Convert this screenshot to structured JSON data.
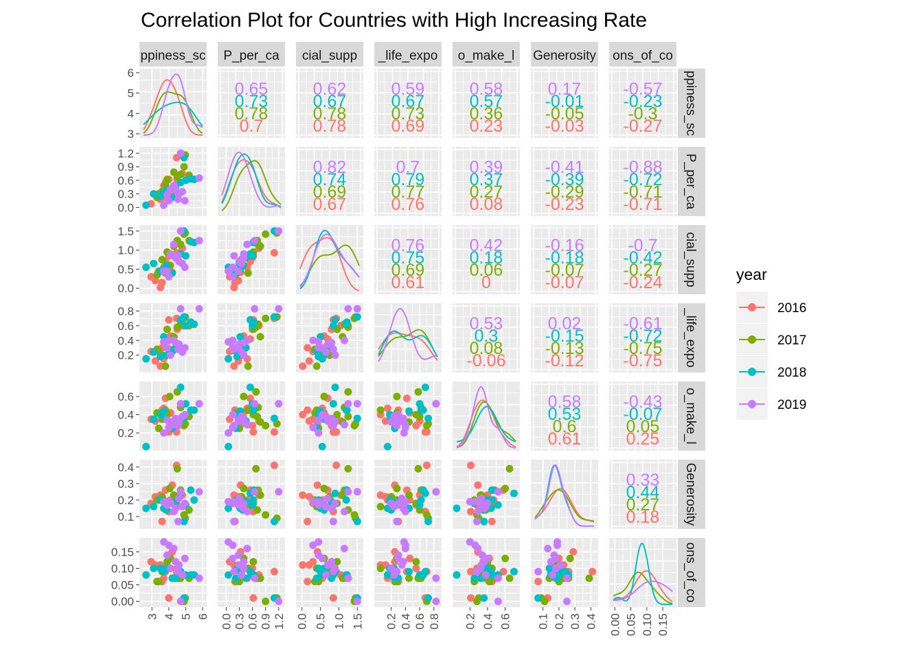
{
  "chart_data": {
    "type": "scatter",
    "title": "Correlation Plot for Countries with High Increasing Rate",
    "variables": [
      {
        "strip": "ppiness_sc",
        "strip_row": "ppiness_sc",
        "range": [
          2.5,
          6.0
        ],
        "ticks": [
          3,
          4,
          5,
          6
        ],
        "tick_labels": [
          "3",
          "4",
          "5",
          "6"
        ],
        "ytick_labels": [
          "3",
          "4",
          "5",
          "6"
        ]
      },
      {
        "strip": "P_per_ca",
        "strip_row": "P_per_ca",
        "range": [
          -0.1,
          1.25
        ],
        "ticks": [
          0.0,
          0.3,
          0.6,
          0.9,
          1.2
        ],
        "tick_labels": [
          "0.0",
          "0.3",
          "0.6",
          "0.9",
          "1.2"
        ],
        "ytick_labels": [
          "0.0",
          "0.3",
          "0.6",
          "0.9",
          "1.2"
        ]
      },
      {
        "strip": "cial_supp",
        "strip_row": "cial_supp",
        "range": [
          -0.05,
          1.55
        ],
        "ticks": [
          0.0,
          0.5,
          1.0,
          1.5
        ],
        "tick_labels": [
          "0.0",
          "0.5",
          "1.0",
          "1.5"
        ],
        "ytick_labels": [
          "0.0",
          "0.5",
          "1.0",
          "1.5"
        ]
      },
      {
        "strip": "_life_expo",
        "strip_row": "_life_expo",
        "range": [
          0.02,
          0.85
        ],
        "ticks": [
          0.2,
          0.4,
          0.6,
          0.8
        ],
        "tick_labels": [
          "0.2",
          "0.4",
          "0.6",
          "0.8"
        ],
        "ytick_labels": [
          "0.2",
          "0.4",
          "0.6",
          "0.8"
        ]
      },
      {
        "strip": "o_make_l",
        "strip_row": "o_make_l",
        "range": [
          0.05,
          0.72
        ],
        "ticks": [
          0.2,
          0.4,
          0.6
        ],
        "tick_labels": [
          "0.2",
          "0.4",
          "0.6"
        ],
        "ytick_labels": [
          "0.2",
          "0.4",
          "0.6"
        ]
      },
      {
        "strip": "Generosity",
        "strip_row": "Generosity",
        "range": [
          0.05,
          0.42
        ],
        "ticks": [
          0.1,
          0.2,
          0.3,
          0.4
        ],
        "tick_labels": [
          "0.1",
          "0.2",
          "0.3",
          "0.4"
        ],
        "ytick_labels": [
          "0.1",
          "0.2",
          "0.3",
          "0.4"
        ]
      },
      {
        "strip": "ons_of_co",
        "strip_row": "ons_of_co",
        "range": [
          -0.005,
          0.18
        ],
        "ticks": [
          0.0,
          0.05,
          0.1,
          0.15
        ],
        "tick_labels": [
          "0.00",
          "0.05",
          "0.10",
          "0.15"
        ],
        "ytick_labels": [
          "0.00",
          "0.05",
          "0.10",
          "0.15"
        ]
      }
    ],
    "legend": {
      "title": "year",
      "position": "right",
      "entries": [
        {
          "label": "2016",
          "color": "#F8766D"
        },
        {
          "label": "2017",
          "color": "#7CAE00"
        },
        {
          "label": "2018",
          "color": "#00BFC4"
        },
        {
          "label": "2019",
          "color": "#C77CFF"
        }
      ]
    },
    "correlations": [
      {
        "row": 0,
        "col": 1,
        "values": [
          "0.65",
          "0.73",
          "0.78",
          "0.7"
        ]
      },
      {
        "row": 0,
        "col": 2,
        "values": [
          "0.62",
          "0.67",
          "0.78",
          "0.78"
        ]
      },
      {
        "row": 0,
        "col": 3,
        "values": [
          "0.59",
          "0.67",
          "0.73",
          "0.69"
        ]
      },
      {
        "row": 0,
        "col": 4,
        "values": [
          "0.58",
          "0.57",
          "0.36",
          "0.23"
        ]
      },
      {
        "row": 0,
        "col": 5,
        "values": [
          "0.17",
          "-0.01",
          "-0.05",
          "-0.03"
        ]
      },
      {
        "row": 0,
        "col": 6,
        "values": [
          "-0.57",
          "-0.23",
          "-0.3",
          "-0.27"
        ]
      },
      {
        "row": 1,
        "col": 2,
        "values": [
          "0.82",
          "0.74",
          "0.69",
          "0.67"
        ]
      },
      {
        "row": 1,
        "col": 3,
        "values": [
          "0.7",
          "0.79",
          "0.77",
          "0.76"
        ]
      },
      {
        "row": 1,
        "col": 4,
        "values": [
          "0.39",
          "0.37",
          "0.27",
          "0.08"
        ]
      },
      {
        "row": 1,
        "col": 5,
        "values": [
          "-0.41",
          "-0.39",
          "-0.29",
          "-0.23"
        ]
      },
      {
        "row": 1,
        "col": 6,
        "values": [
          "-0.88",
          "-0.72",
          "-0.71",
          "-0.71"
        ]
      },
      {
        "row": 2,
        "col": 3,
        "values": [
          "0.76",
          "0.75",
          "0.69",
          "0.61"
        ]
      },
      {
        "row": 2,
        "col": 4,
        "values": [
          "0.42",
          "0.18",
          "0.06",
          "0"
        ]
      },
      {
        "row": 2,
        "col": 5,
        "values": [
          "-0.16",
          "-0.18",
          "-0.07",
          "-0.07"
        ]
      },
      {
        "row": 2,
        "col": 6,
        "values": [
          "-0.7",
          "-0.42",
          "-0.27",
          "-0.24"
        ]
      },
      {
        "row": 3,
        "col": 4,
        "values": [
          "0.53",
          "0.3",
          "0.08",
          "-0.06"
        ]
      },
      {
        "row": 3,
        "col": 5,
        "values": [
          "0.02",
          "-0.15",
          "-0.13",
          "-0.12"
        ]
      },
      {
        "row": 3,
        "col": 6,
        "values": [
          "-0.61",
          "-0.72",
          "-0.75",
          "-0.75"
        ]
      },
      {
        "row": 4,
        "col": 5,
        "values": [
          "0.58",
          "0.53",
          "0.6",
          "0.61"
        ]
      },
      {
        "row": 4,
        "col": 6,
        "values": [
          "-0.43",
          "-0.07",
          "0.05",
          "0.25"
        ]
      },
      {
        "row": 5,
        "col": 6,
        "values": [
          "0.33",
          "0.44",
          "0.27",
          "0.18"
        ]
      }
    ],
    "series": [
      {
        "name": "2016",
        "points": [
          [
            4.46,
            1.1,
            0.93,
            0.7,
            0.21,
            0.41,
            0.09
          ],
          [
            3.8,
            0.55,
            0.7,
            0.42,
            0.58,
            0.26,
            0.09
          ],
          [
            3.2,
            0.28,
            0.2,
            0.12,
            0.33,
            0.22,
            0.11
          ],
          [
            3.5,
            0.18,
            0.02,
            0.05,
            0.4,
            0.23,
            0.11
          ],
          [
            2.95,
            0.08,
            0.3,
            0.25,
            0.35,
            0.18,
            0.12
          ],
          [
            4.1,
            0.4,
            0.6,
            0.46,
            0.42,
            0.2,
            0.13
          ],
          [
            4.2,
            0.33,
            0.42,
            0.25,
            0.29,
            0.29,
            0.15
          ],
          [
            4.5,
            0.6,
            0.8,
            0.55,
            0.28,
            0.17,
            0.1
          ],
          [
            3.6,
            0.2,
            0.15,
            0.3,
            0.45,
            0.07,
            0.06
          ],
          [
            3.7,
            0.48,
            0.55,
            0.15,
            0.47,
            0.2,
            0.07
          ],
          [
            4.0,
            0.62,
            0.85,
            0.68,
            0.21,
            0.13,
            0.01
          ],
          [
            4.8,
            0.75,
            1.05,
            0.6,
            0.33,
            0.23,
            0.08
          ]
        ]
      },
      {
        "name": "2017",
        "points": [
          [
            4.97,
            1.16,
            1.45,
            0.72,
            0.3,
            0.09,
            0.01
          ],
          [
            4.5,
            0.68,
            1.25,
            0.58,
            0.65,
            0.39,
            0.07
          ],
          [
            3.9,
            0.62,
            0.95,
            0.55,
            0.4,
            0.18,
            0.12
          ],
          [
            3.4,
            0.3,
            0.45,
            0.25,
            0.25,
            0.2,
            0.06
          ],
          [
            3.6,
            0.35,
            0.75,
            0.2,
            0.35,
            0.22,
            0.09
          ],
          [
            4.05,
            0.4,
            0.6,
            0.28,
            0.6,
            0.27,
            0.13
          ],
          [
            3.3,
            0.22,
            0.35,
            0.28,
            0.42,
            0.2,
            0.06
          ],
          [
            4.3,
            0.78,
            1.1,
            0.45,
            0.32,
            0.23,
            0.07
          ],
          [
            3.8,
            0.5,
            0.4,
            0.05,
            0.45,
            0.16,
            0.1
          ],
          [
            4.7,
            0.73,
            1.15,
            0.62,
            0.48,
            0.26,
            0.07
          ],
          [
            5.2,
            0.71,
            1.25,
            0.6,
            0.38,
            0.14,
            0.07
          ],
          [
            4.9,
            0.9,
            1.42,
            0.7,
            0.28,
            0.11,
            0.0
          ]
        ]
      },
      {
        "name": "2018",
        "points": [
          [
            4.9,
            1.1,
            1.5,
            0.72,
            0.36,
            0.07,
            0.01
          ],
          [
            5.5,
            0.62,
            1.2,
            0.62,
            0.45,
            0.2,
            0.08
          ],
          [
            2.65,
            0.05,
            0.55,
            0.15,
            0.05,
            0.15,
            0.08
          ],
          [
            3.1,
            0.3,
            0.65,
            0.24,
            0.35,
            0.16,
            0.1
          ],
          [
            3.7,
            0.32,
            0.5,
            0.45,
            0.44,
            0.15,
            0.09
          ],
          [
            4.2,
            0.22,
            0.4,
            0.25,
            0.25,
            0.18,
            0.07
          ],
          [
            4.7,
            0.55,
            0.9,
            0.68,
            0.7,
            0.24,
            0.09
          ],
          [
            3.85,
            0.38,
            0.6,
            0.2,
            0.35,
            0.14,
            0.1
          ],
          [
            4.4,
            0.45,
            0.8,
            0.3,
            0.33,
            0.19,
            0.07
          ],
          [
            5.0,
            0.6,
            0.85,
            0.6,
            0.52,
            0.17,
            0.08
          ],
          [
            3.5,
            0.25,
            0.45,
            0.18,
            0.4,
            0.2,
            0.1
          ],
          [
            5.3,
            0.63,
            1.22,
            0.65,
            0.45,
            0.26,
            0.08
          ]
        ]
      },
      {
        "name": "2019",
        "points": [
          [
            4.7,
            1.2,
            1.5,
            0.83,
            0.52,
            0.25,
            0.0
          ],
          [
            5.8,
            0.65,
            1.25,
            0.83,
            0.52,
            0.25,
            0.07
          ],
          [
            3.7,
            0.05,
            0.45,
            0.38,
            0.2,
            0.19,
            0.18
          ],
          [
            4.0,
            0.15,
            0.3,
            0.4,
            0.26,
            0.19,
            0.17
          ],
          [
            4.4,
            0.4,
            0.8,
            0.37,
            0.36,
            0.15,
            0.12
          ],
          [
            4.6,
            0.3,
            0.7,
            0.35,
            0.33,
            0.21,
            0.11
          ],
          [
            3.9,
            0.28,
            0.45,
            0.3,
            0.34,
            0.17,
            0.14
          ],
          [
            4.1,
            0.4,
            0.9,
            0.2,
            0.32,
            0.18,
            0.1
          ],
          [
            4.55,
            0.18,
            0.85,
            0.28,
            0.28,
            0.07,
            0.09
          ],
          [
            4.8,
            0.35,
            0.65,
            0.24,
            0.38,
            0.16,
            0.08
          ],
          [
            4.3,
            0.48,
            1.15,
            0.4,
            0.29,
            0.13,
            0.16
          ],
          [
            4.95,
            0.15,
            0.55,
            0.3,
            0.4,
            0.18,
            0.13
          ]
        ]
      }
    ]
  }
}
